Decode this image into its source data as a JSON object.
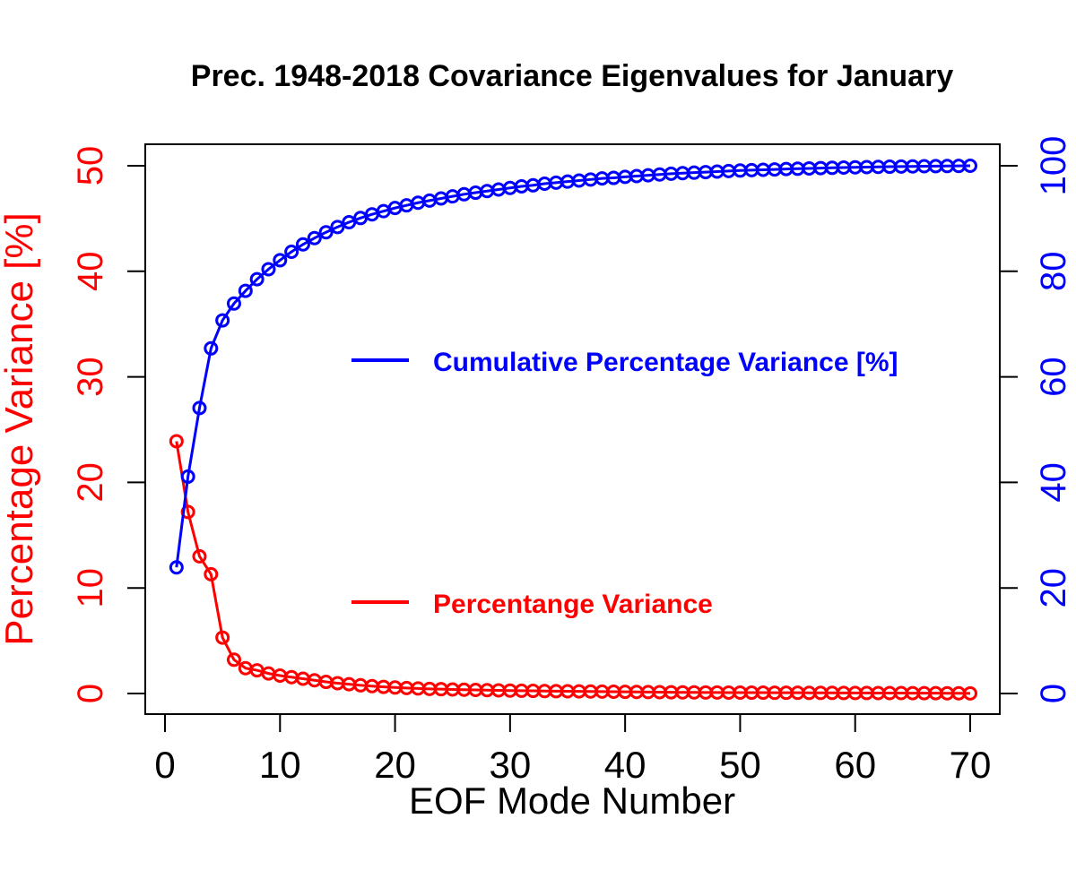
{
  "chart_data": {
    "type": "line",
    "title": "Prec. 1948-2018 Covariance Eigenvalues for January",
    "xlabel": "EOF Mode Number",
    "ylabel_left": "Percentage Variance [%]",
    "ylabel_right": "",
    "xlim": [
      0,
      70
    ],
    "ylim_left": [
      0,
      50
    ],
    "ylim_right": [
      0,
      100
    ],
    "x_ticks": [
      "0",
      "10",
      "20",
      "30",
      "40",
      "50",
      "60",
      "70"
    ],
    "y_left_ticks": [
      "0",
      "10",
      "20",
      "30",
      "40",
      "50"
    ],
    "y_right_ticks": [
      "0",
      "20",
      "40",
      "60",
      "80",
      "100"
    ],
    "grid": false,
    "legend_placement": "center-right",
    "x": [
      1,
      2,
      3,
      4,
      5,
      6,
      7,
      8,
      9,
      10,
      11,
      12,
      13,
      14,
      15,
      16,
      17,
      18,
      19,
      20,
      21,
      22,
      23,
      24,
      25,
      26,
      27,
      28,
      29,
      30,
      31,
      32,
      33,
      34,
      35,
      36,
      37,
      38,
      39,
      40,
      41,
      42,
      43,
      44,
      45,
      46,
      47,
      48,
      49,
      50,
      51,
      52,
      53,
      54,
      55,
      56,
      57,
      58,
      59,
      60,
      61,
      62,
      63,
      64,
      65,
      66,
      67,
      68,
      69,
      70
    ],
    "series": [
      {
        "name": "Percentange Variance",
        "axis": "left",
        "color": "#ff0000",
        "values": [
          23.9,
          17.2,
          13.0,
          11.3,
          5.3,
          3.2,
          2.4,
          2.2,
          1.9,
          1.7,
          1.55,
          1.4,
          1.25,
          1.1,
          0.98,
          0.88,
          0.78,
          0.7,
          0.63,
          0.57,
          0.52,
          0.48,
          0.44,
          0.41,
          0.38,
          0.36,
          0.34,
          0.32,
          0.3,
          0.28,
          0.26,
          0.25,
          0.23,
          0.22,
          0.21,
          0.2,
          0.19,
          0.18,
          0.17,
          0.16,
          0.15,
          0.14,
          0.13,
          0.12,
          0.11,
          0.11,
          0.1,
          0.1,
          0.09,
          0.09,
          0.08,
          0.08,
          0.07,
          0.07,
          0.07,
          0.06,
          0.06,
          0.06,
          0.05,
          0.05,
          0.05,
          0.04,
          0.04,
          0.04,
          0.03,
          0.03,
          0.03,
          0.02,
          0.02,
          0.01
        ]
      },
      {
        "name": "Cumulative Percentage Variance [%]",
        "axis": "right",
        "color": "#0000ff",
        "values": [
          23.9,
          41.1,
          54.1,
          65.4,
          70.7,
          73.9,
          76.3,
          78.5,
          80.4,
          82.1,
          83.7,
          85.1,
          86.3,
          87.4,
          88.4,
          89.3,
          90.1,
          90.8,
          91.4,
          92.0,
          92.5,
          93.0,
          93.4,
          93.8,
          94.2,
          94.6,
          94.9,
          95.2,
          95.5,
          95.8,
          96.1,
          96.3,
          96.6,
          96.8,
          97.0,
          97.2,
          97.4,
          97.6,
          97.7,
          97.9,
          98.05,
          98.2,
          98.35,
          98.5,
          98.6,
          98.7,
          98.8,
          98.9,
          99.0,
          99.1,
          99.17,
          99.24,
          99.31,
          99.38,
          99.44,
          99.5,
          99.56,
          99.61,
          99.66,
          99.71,
          99.75,
          99.79,
          99.82,
          99.85,
          99.88,
          99.91,
          99.93,
          99.95,
          99.97,
          100.0
        ]
      }
    ]
  }
}
